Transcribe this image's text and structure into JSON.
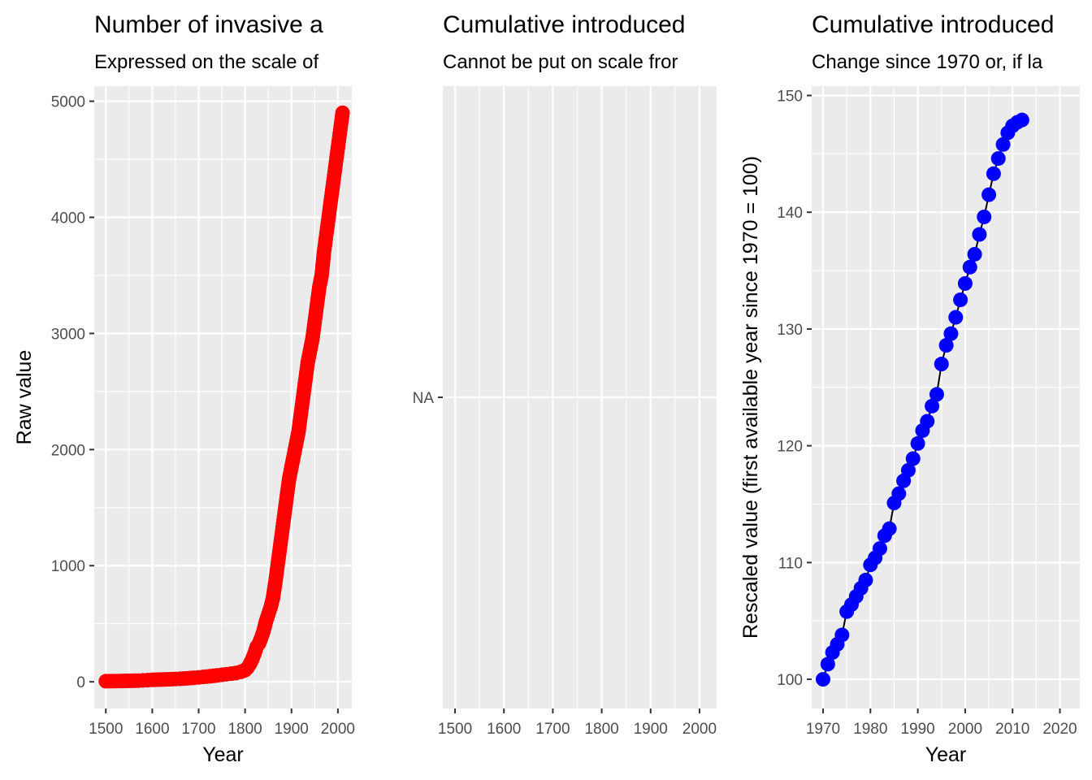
{
  "chart_data": [
    {
      "type": "scatter",
      "title": "Number of invasive a",
      "subtitle": "Expressed on the scale of",
      "xlabel": "Year",
      "ylabel": "Raw value",
      "xlim": [
        1475,
        2030
      ],
      "ylim": [
        -230,
        5130
      ],
      "x_ticks": [
        1500,
        1600,
        1700,
        1800,
        1900,
        2000
      ],
      "y_ticks": [
        0,
        1000,
        2000,
        3000,
        4000,
        5000
      ],
      "grid": true,
      "point_color": "#ff0000",
      "series": [
        {
          "x": [
            1500,
            1520,
            1550,
            1570,
            1580,
            1590,
            1600,
            1625,
            1650,
            1660,
            1675,
            1690,
            1700,
            1710,
            1725,
            1740,
            1750,
            1760,
            1770,
            1780,
            1790,
            1800,
            1805,
            1810,
            1815,
            1820,
            1825,
            1830,
            1835,
            1840,
            1845,
            1850,
            1855,
            1860,
            1865,
            1870,
            1875,
            1880,
            1885,
            1890,
            1895,
            1900,
            1905,
            1910,
            1915,
            1920,
            1925,
            1930,
            1935,
            1940,
            1945,
            1950,
            1955,
            1960,
            1965,
            1970,
            1975,
            1980,
            1985,
            1990,
            1995,
            2000,
            2005,
            2010
          ],
          "y": [
            5,
            6,
            8,
            10,
            12,
            14,
            17,
            20,
            24,
            26,
            30,
            34,
            38,
            42,
            48,
            55,
            60,
            65,
            70,
            75,
            85,
            100,
            120,
            150,
            190,
            240,
            300,
            330,
            380,
            440,
            520,
            580,
            640,
            720,
            850,
            1000,
            1150,
            1300,
            1450,
            1600,
            1750,
            1850,
            1950,
            2050,
            2150,
            2300,
            2450,
            2600,
            2750,
            2850,
            2950,
            3100,
            3250,
            3400,
            3500,
            3700,
            3850,
            4000,
            4150,
            4300,
            4450,
            4600,
            4750,
            4900
          ]
        }
      ]
    },
    {
      "type": "scatter",
      "title": "Cumulative introduced",
      "subtitle": "Cannot be put on scale fror",
      "xlabel": "",
      "ylabel": "",
      "xlim": [
        1475,
        2035
      ],
      "x_ticks": [
        1500,
        1600,
        1700,
        1800,
        1900,
        2000
      ],
      "y_ticks_text": [
        "NA"
      ],
      "grid": true,
      "series": []
    },
    {
      "type": "line",
      "title": "Cumulative introduced",
      "subtitle": "Change since 1970 or, if la",
      "xlabel": "Year",
      "ylabel": "Rescaled value (first available year since 1970 = 100)",
      "xlim": [
        1967.6,
        2024.2
      ],
      "ylim": [
        97.5,
        150.8
      ],
      "x_ticks": [
        1970,
        1980,
        1990,
        2000,
        2010,
        2020
      ],
      "y_ticks": [
        100,
        110,
        120,
        130,
        140,
        150
      ],
      "grid": true,
      "point_color": "#0000ff",
      "line_color": "#000000",
      "series": [
        {
          "x": [
            1970,
            1971,
            1972,
            1973,
            1974,
            1975,
            1976,
            1977,
            1978,
            1979,
            1980,
            1981,
            1982,
            1983,
            1984,
            1985,
            1986,
            1987,
            1988,
            1989,
            1990,
            1991,
            1992,
            1993,
            1994,
            1995,
            1996,
            1997,
            1998,
            1999,
            2000,
            2001,
            2002,
            2003,
            2004,
            2005,
            2006,
            2007,
            2008,
            2009,
            2010,
            2011,
            2012
          ],
          "y": [
            100,
            101.3,
            102.3,
            103.0,
            103.8,
            105.8,
            106.4,
            107.1,
            107.8,
            108.5,
            109.8,
            110.4,
            111.2,
            112.3,
            112.9,
            115.1,
            115.9,
            117.0,
            117.9,
            118.9,
            120.2,
            121.3,
            122.1,
            123.4,
            124.4,
            127.0,
            128.6,
            129.6,
            131.0,
            132.5,
            133.9,
            135.3,
            136.4,
            138.1,
            139.6,
            141.5,
            143.3,
            144.6,
            145.8,
            146.8,
            147.4,
            147.7,
            147.9
          ]
        }
      ]
    }
  ]
}
